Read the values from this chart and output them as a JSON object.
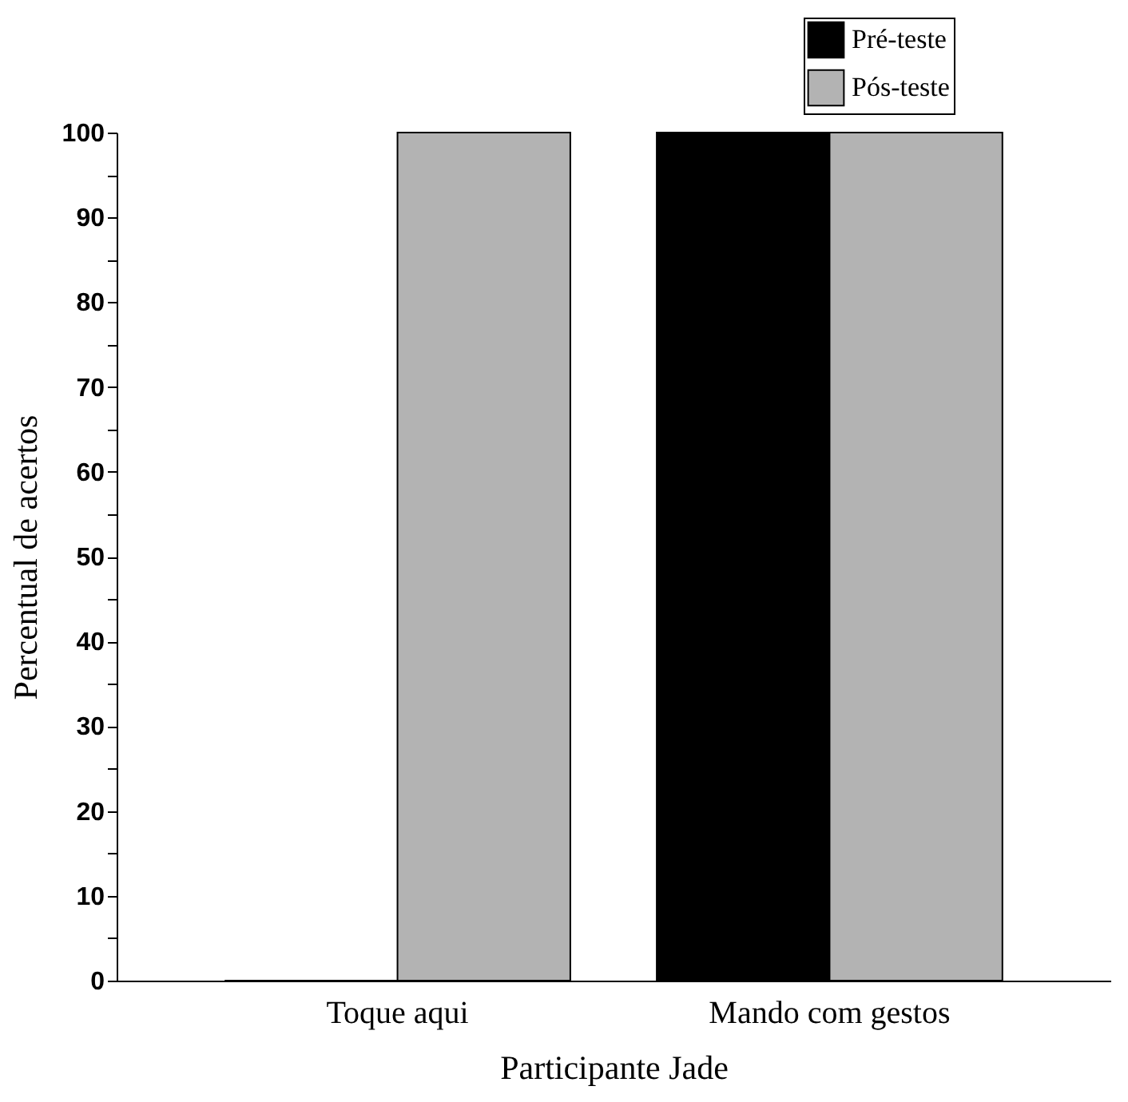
{
  "chart_data": {
    "type": "bar",
    "xlabel": "Participante Jade",
    "ylabel": "Percentual de acertos",
    "categories": [
      "Toque aqui",
      "Mando com gestos"
    ],
    "series": [
      {
        "name": "Pré-teste",
        "color": "#000000",
        "values": [
          0,
          100
        ]
      },
      {
        "name": "Pós-teste",
        "color": "#b3b3b3",
        "values": [
          100,
          100
        ]
      }
    ],
    "ylim": [
      0,
      100
    ],
    "yticks": [
      0,
      {
        "value": 5,
        "label": null
      },
      10,
      {
        "value": 15,
        "label": null
      },
      20,
      {
        "value": 25,
        "label": null
      },
      30,
      {
        "value": 35,
        "label": null
      },
      40,
      {
        "value": 45,
        "label": null
      },
      50,
      {
        "value": 55,
        "label": null
      },
      60,
      {
        "value": 65,
        "label": null
      },
      70,
      {
        "value": 75,
        "label": null
      },
      80,
      {
        "value": 85,
        "label": null
      },
      90,
      {
        "value": 95,
        "label": null
      },
      100
    ],
    "grid": false,
    "legend": "top right"
  }
}
